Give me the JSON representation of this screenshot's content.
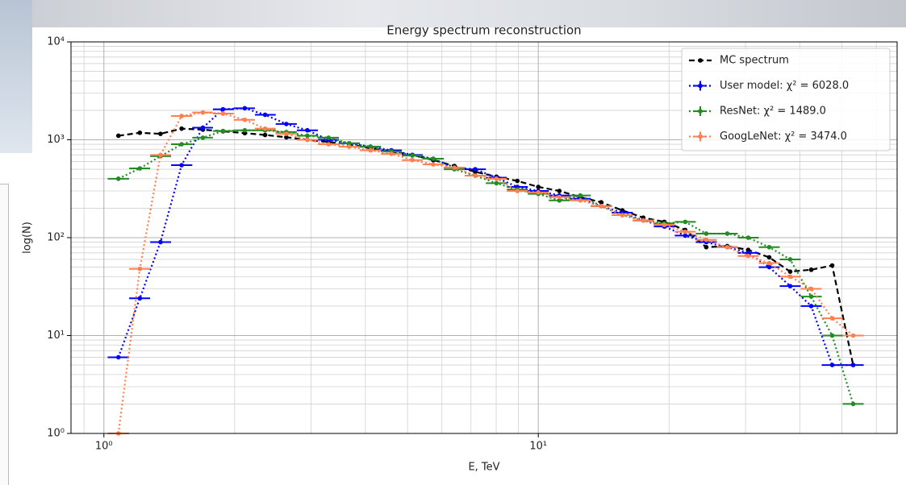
{
  "chart_data": {
    "type": "line",
    "title": "Energy spectrum reconstruction",
    "xlabel": "E, TeV",
    "ylabel": "log(N)",
    "xscale": "log",
    "yscale": "log",
    "grid": true,
    "legend": "upper right",
    "xlim": [
      0.84,
      67
    ],
    "ylim": [
      1,
      10000
    ],
    "xticks": [
      {
        "value": 1,
        "label": "10⁰"
      },
      {
        "value": 10,
        "label": "10¹"
      }
    ],
    "yticks": [
      {
        "value": 1,
        "label": "10⁰"
      },
      {
        "value": 10,
        "label": "10¹"
      },
      {
        "value": 100,
        "label": "10²"
      },
      {
        "value": 1000,
        "label": "10³"
      },
      {
        "value": 10000,
        "label": "10⁴"
      }
    ],
    "xminorticks": [
      0.9,
      2,
      3,
      4,
      5,
      6,
      7,
      8,
      9,
      20,
      30,
      40,
      50,
      60
    ],
    "yminorticks": [
      2,
      3,
      4,
      5,
      6,
      7,
      8,
      9,
      20,
      30,
      40,
      50,
      60,
      70,
      80,
      90,
      200,
      300,
      400,
      500,
      600,
      700,
      800,
      900,
      2000,
      3000,
      4000,
      5000,
      6000,
      7000,
      8000,
      9000
    ],
    "x": [
      1.08,
      1.21,
      1.35,
      1.51,
      1.69,
      1.88,
      2.11,
      2.35,
      2.63,
      2.94,
      3.29,
      3.67,
      4.11,
      4.59,
      5.13,
      5.73,
      6.41,
      7.16,
      8.01,
      8.95,
      10.0,
      11.18,
      12.5,
      13.96,
      15.61,
      17.45,
      19.5,
      21.79,
      24.36,
      27.23,
      30.43,
      34.01,
      38.01,
      42.49,
      47.49,
      53.08
    ],
    "series": [
      {
        "name": "MC spectrum",
        "color": "#000000",
        "linestyle": "dashed",
        "errorbars": false,
        "values": [
          1100,
          1180,
          1150,
          1300,
          1270,
          1220,
          1170,
          1120,
          1060,
          1000,
          950,
          900,
          820,
          760,
          700,
          620,
          540,
          470,
          420,
          380,
          330,
          300,
          260,
          230,
          190,
          160,
          145,
          120,
          80,
          82,
          75,
          63,
          45,
          47,
          52,
          5
        ]
      },
      {
        "name": "User model: χ² = 6028.0",
        "color": "#0000ff",
        "linestyle": "dotted",
        "errorbars": true,
        "values": [
          6,
          24,
          90,
          550,
          1330,
          2050,
          2100,
          1800,
          1450,
          1250,
          1000,
          920,
          850,
          780,
          700,
          640,
          520,
          500,
          410,
          330,
          300,
          270,
          250,
          210,
          180,
          150,
          130,
          105,
          90,
          80,
          70,
          50,
          32,
          20,
          5,
          5
        ]
      },
      {
        "name": "ResNet: χ² = 1489.0",
        "color": "#228b22",
        "linestyle": "dotted",
        "errorbars": true,
        "values": [
          400,
          510,
          680,
          900,
          1050,
          1230,
          1250,
          1250,
          1200,
          1100,
          1050,
          920,
          850,
          760,
          690,
          640,
          500,
          430,
          360,
          310,
          280,
          240,
          270,
          210,
          170,
          150,
          140,
          145,
          110,
          110,
          100,
          80,
          60,
          25,
          10,
          2
        ]
      },
      {
        "name": "GoogLeNet: χ² = 3474.0",
        "color": "#ff7f50",
        "linestyle": "dotted",
        "errorbars": true,
        "values": [
          1,
          48,
          700,
          1750,
          1900,
          1850,
          1600,
          1300,
          1150,
          1000,
          900,
          850,
          780,
          720,
          620,
          560,
          520,
          430,
          400,
          300,
          290,
          260,
          240,
          210,
          170,
          150,
          135,
          115,
          95,
          80,
          65,
          55,
          40,
          30,
          15,
          10
        ]
      }
    ]
  }
}
